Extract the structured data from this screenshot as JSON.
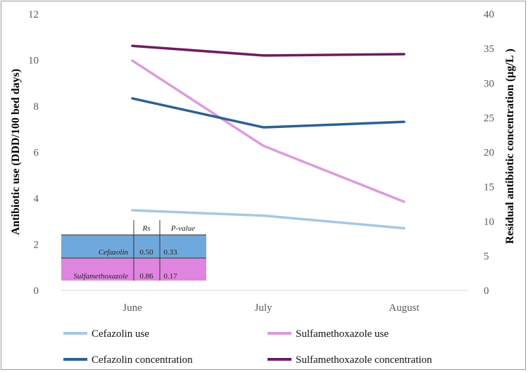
{
  "chart_data": {
    "type": "line",
    "categories": [
      "June",
      "July",
      "August"
    ],
    "y_left": {
      "label": "Antibiotic use (DDD/100 bed days)",
      "range": [
        0,
        12
      ],
      "ticks": [
        "0",
        "2",
        "4",
        "6",
        "8",
        "10",
        "12"
      ]
    },
    "y_right": {
      "label": "Residual antibiotic concentration (µg/L )",
      "range": [
        0,
        40
      ],
      "ticks": [
        "0",
        "5",
        "10",
        "15",
        "20",
        "25",
        "30",
        "35",
        "40"
      ]
    },
    "series": [
      {
        "name": "Cefazolin use",
        "axis": "left",
        "color": "#a6c8e6",
        "values": [
          3.48,
          3.25,
          2.7
        ]
      },
      {
        "name": "Sulfamethoxazole use",
        "axis": "left",
        "color": "#dd9bdb",
        "values": [
          9.98,
          6.28,
          3.85
        ]
      },
      {
        "name": "Cefazolin concentration",
        "axis": "right",
        "color": "#2b6193",
        "values": [
          27.8,
          23.6,
          24.4
        ]
      },
      {
        "name": "Sulfamethoxazole concentration",
        "axis": "right",
        "color": "#6f1b62",
        "values": [
          35.4,
          34.0,
          34.2
        ]
      }
    ],
    "grid": false,
    "legend_position": "bottom",
    "stats_table": {
      "headers": [
        "",
        "Rs",
        "P-value"
      ],
      "rows": [
        {
          "label": "Cefazolin",
          "rs": "0.50",
          "p": "0.33",
          "color": "#6fa8dc"
        },
        {
          "label": "Sulfamethoxazole",
          "rs": "0.86",
          "p": "0.17",
          "color": "#e085df"
        }
      ]
    }
  }
}
